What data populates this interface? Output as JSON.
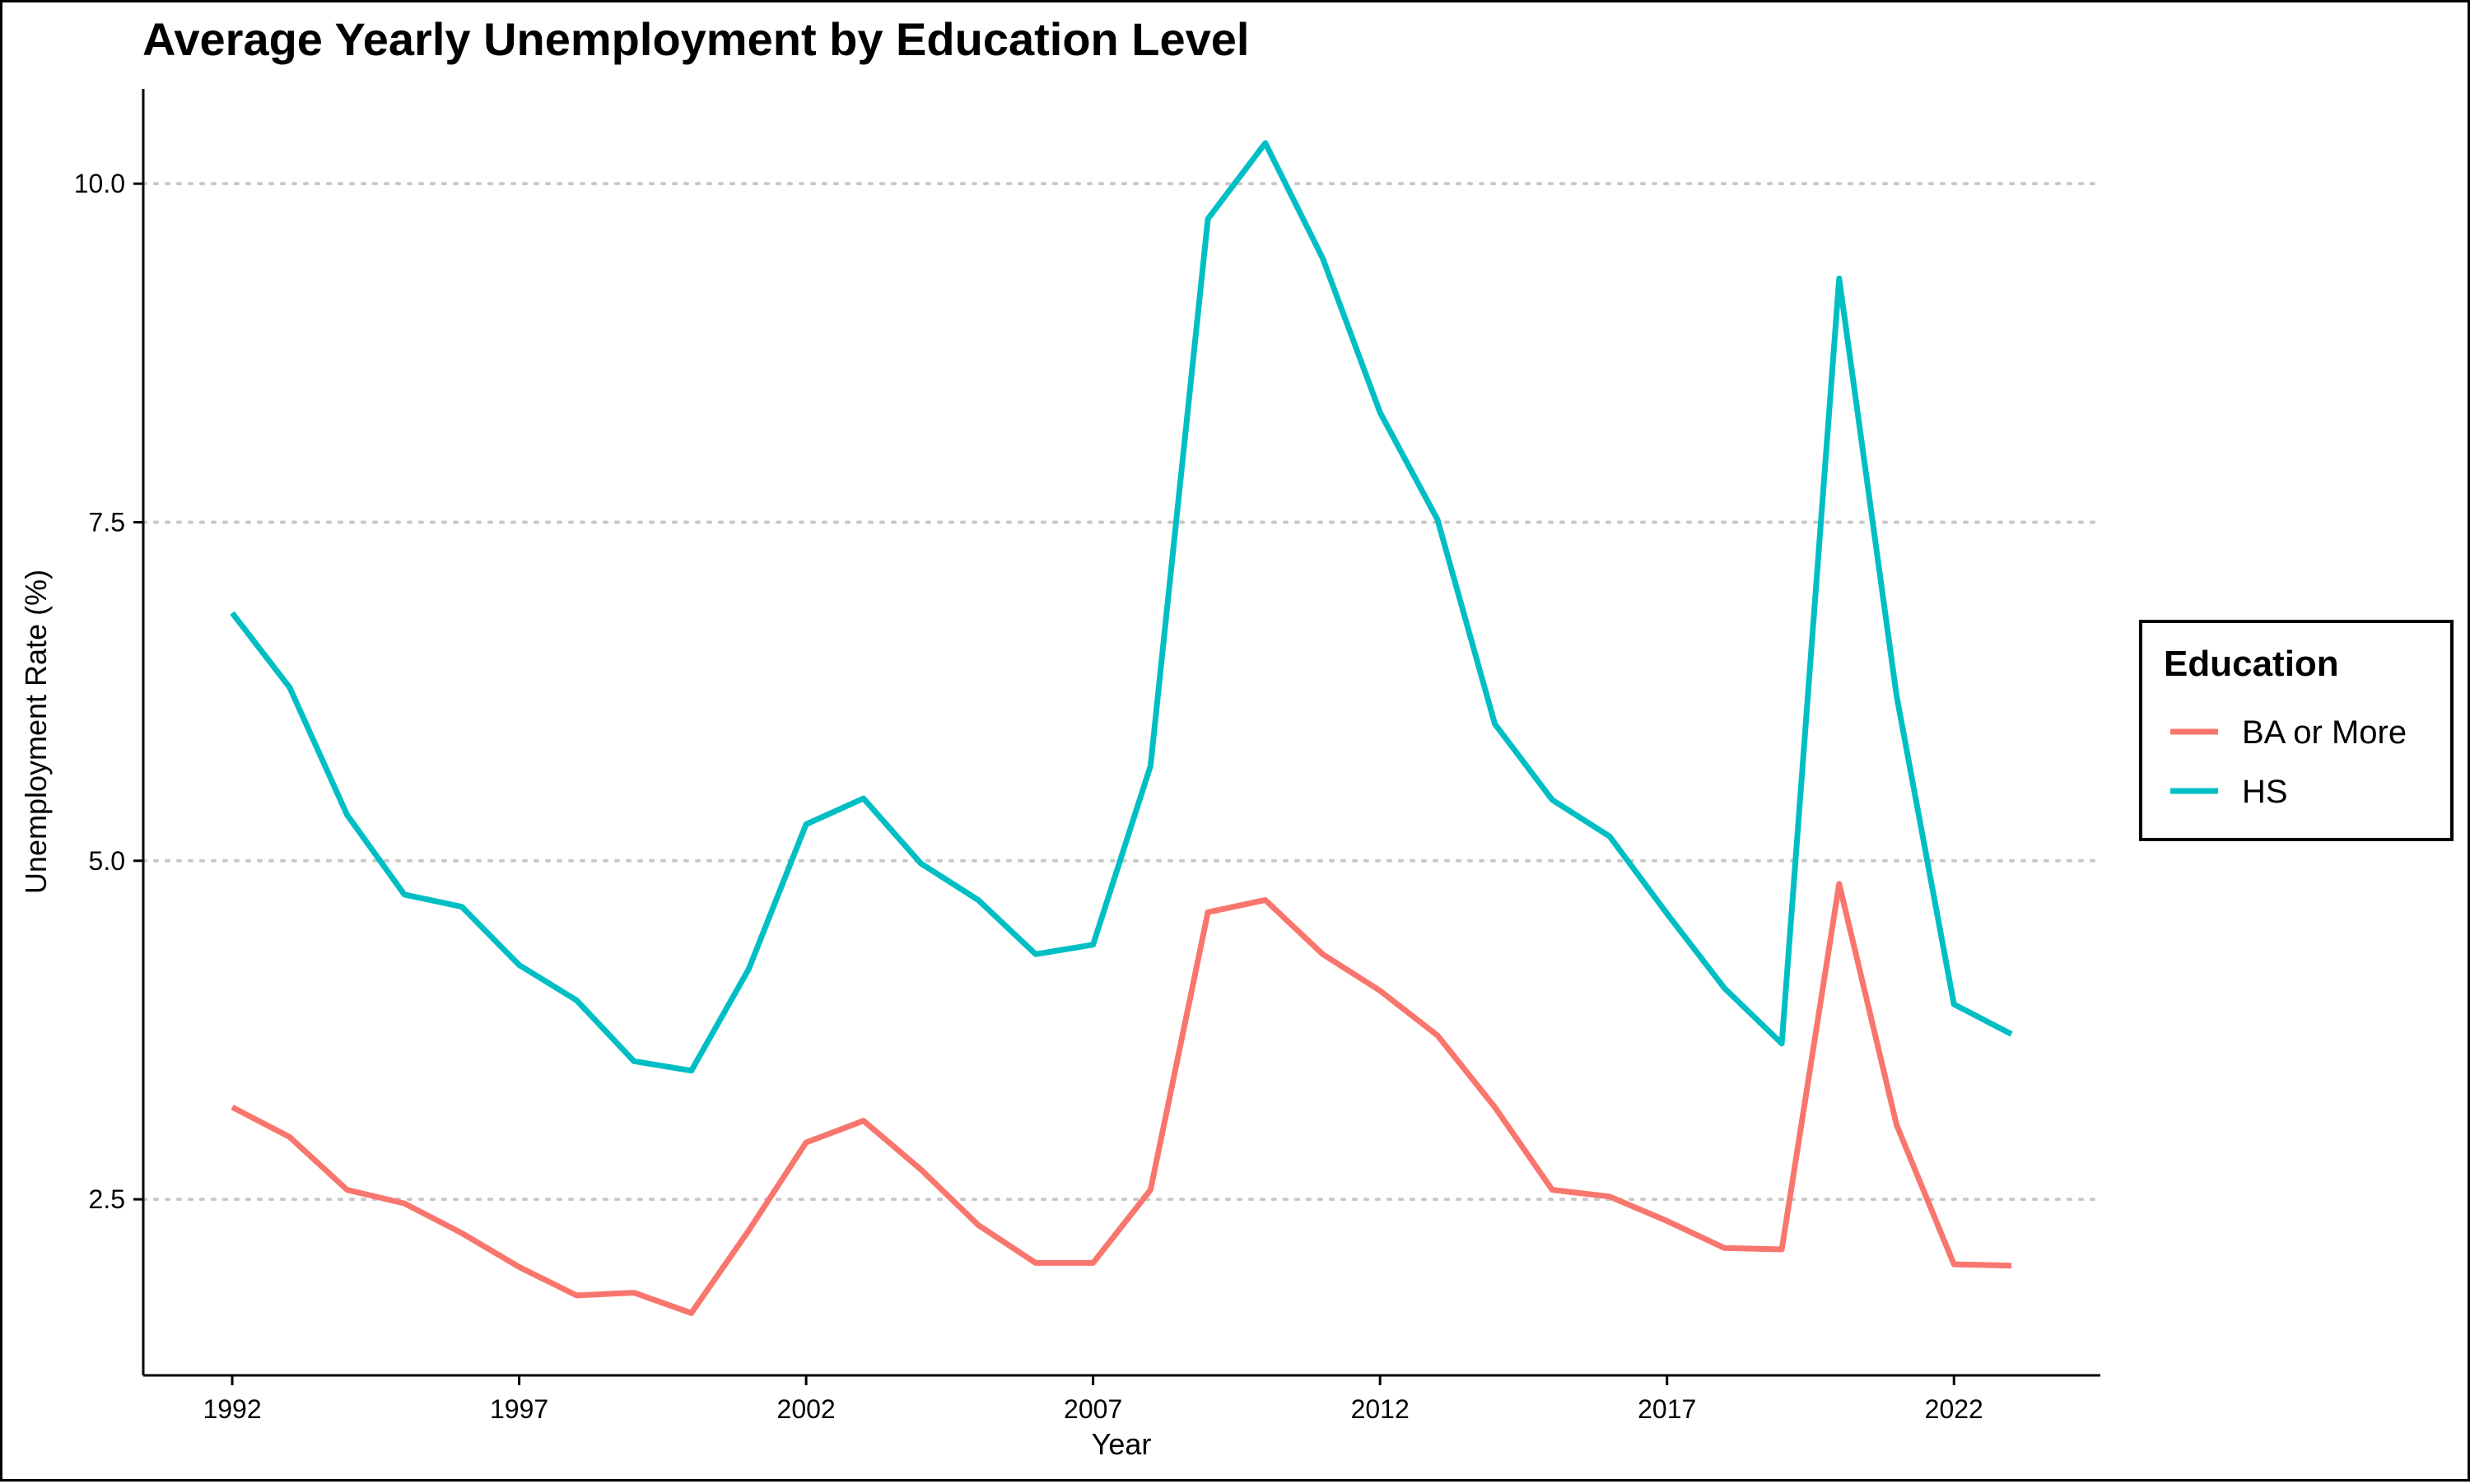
{
  "chart_data": {
    "type": "line",
    "title": "Average Yearly Unemployment by Education Level",
    "xlabel": "Year",
    "ylabel": "Unemployment Rate (%)",
    "x_ticks": [
      1992,
      1997,
      2002,
      2007,
      2012,
      2017,
      2022
    ],
    "y_ticks": [
      2.5,
      5.0,
      7.5,
      10.0
    ],
    "y_tick_labels": [
      "2.5",
      "5.0",
      "7.5",
      "10.0"
    ],
    "xlim": [
      1990.45,
      2024.55
    ],
    "ylim": [
      1.2,
      10.7
    ],
    "grid": "horizontal dotted at major y ticks",
    "legend": {
      "title": "Education",
      "placement": "right"
    },
    "x": [
      1992,
      1993,
      1994,
      1995,
      1996,
      1997,
      1998,
      1999,
      2000,
      2001,
      2002,
      2003,
      2004,
      2005,
      2006,
      2007,
      2008,
      2009,
      2010,
      2011,
      2012,
      2013,
      2014,
      2015,
      2016,
      2017,
      2018,
      2019,
      2020,
      2021,
      2022,
      2023
    ],
    "series": [
      {
        "name": "BA or More",
        "color": "#F8766D",
        "values": [
          3.18,
          2.96,
          2.57,
          2.47,
          2.25,
          2.0,
          1.79,
          1.81,
          1.66,
          2.27,
          2.92,
          3.08,
          2.72,
          2.31,
          2.03,
          2.03,
          2.57,
          4.62,
          4.71,
          4.31,
          4.04,
          3.71,
          3.18,
          2.57,
          2.52,
          2.34,
          2.14,
          2.13,
          4.83,
          3.05,
          2.02,
          2.01
        ]
      },
      {
        "name": "HS",
        "color": "#00BFC4",
        "values": [
          6.83,
          6.28,
          5.34,
          4.75,
          4.66,
          4.23,
          3.97,
          3.52,
          3.45,
          4.2,
          5.27,
          5.46,
          4.98,
          4.71,
          4.31,
          4.38,
          5.7,
          9.74,
          10.3,
          9.45,
          8.31,
          7.52,
          6.01,
          5.45,
          5.18,
          4.61,
          4.06,
          3.65,
          9.3,
          6.22,
          3.94,
          3.72
        ]
      }
    ]
  }
}
